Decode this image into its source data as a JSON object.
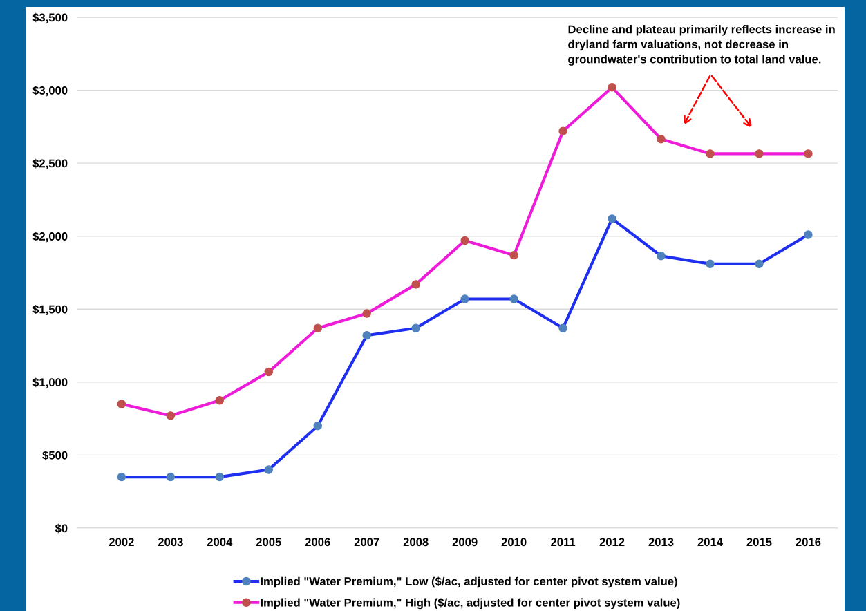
{
  "chart_data": {
    "type": "line",
    "categories": [
      "2002",
      "2003",
      "2004",
      "2005",
      "2006",
      "2007",
      "2008",
      "2009",
      "2010",
      "2011",
      "2012",
      "2013",
      "2014",
      "2015",
      "2016"
    ],
    "series": [
      {
        "name": "Implied \"Water Premium,\" Low ($/ac, adjusted for center pivot system value)",
        "color": "#1f2ff0",
        "values": [
          350,
          350,
          350,
          400,
          700,
          1320,
          1370,
          1570,
          1570,
          1370,
          2120,
          1865,
          1810,
          1810,
          2010
        ]
      },
      {
        "name": "Implied \"Water Premium,\" High ($/ac, adjusted for center pivot system value)",
        "color": "#ee1bd8",
        "values": [
          850,
          770,
          875,
          1070,
          1370,
          1470,
          1670,
          1970,
          1870,
          2720,
          3020,
          2665,
          2565,
          2565,
          2565
        ]
      }
    ],
    "ylim": [
      0,
      3500
    ],
    "yticks": [
      {
        "value": 0,
        "label": "$0"
      },
      {
        "value": 500,
        "label": "$500"
      },
      {
        "value": 1000,
        "label": "$1,000"
      },
      {
        "value": 1500,
        "label": "$1,500"
      },
      {
        "value": 2000,
        "label": "$2,000"
      },
      {
        "value": 2500,
        "label": "$2,500"
      },
      {
        "value": 3000,
        "label": "$3,000"
      },
      {
        "value": 3500,
        "label": "$3,500"
      }
    ],
    "grid": "y",
    "legend": "bottom",
    "marker": "circle",
    "line_style": "solid",
    "annotations": [
      "Decline and plateau primarily reflects increase in\ndryland farm valuations, not decrease in\ngroundwater's contribution to total land value."
    ]
  }
}
